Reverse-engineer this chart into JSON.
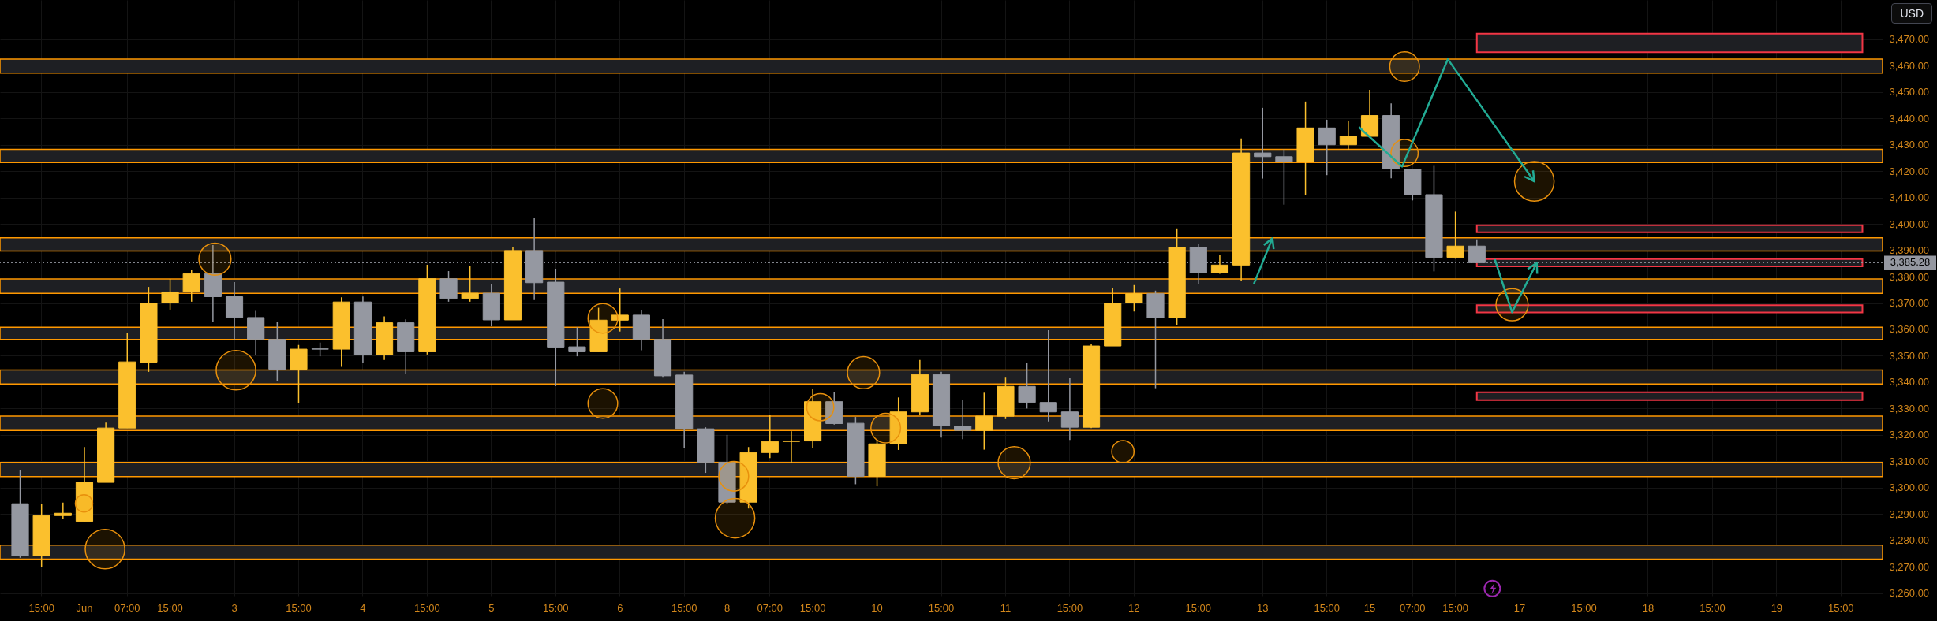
{
  "chart_data": {
    "type": "candlestick",
    "categories": [
      null,
      "15:00",
      null,
      "Jun",
      null,
      "07:00",
      null,
      "15:00",
      null,
      null,
      "3",
      null,
      null,
      "15:00",
      null,
      null,
      "4",
      null,
      null,
      "15:00",
      null,
      null,
      "5",
      null,
      null,
      "15:00",
      null,
      null,
      "6",
      null,
      null,
      "15:00",
      null,
      "8",
      null,
      "07:00",
      null,
      "15:00",
      null,
      null,
      "10",
      null,
      null,
      "15:00",
      null,
      null,
      "11",
      null,
      null,
      "15:00",
      null,
      null,
      "12",
      null,
      null,
      "15:00",
      null,
      null,
      "13",
      null,
      null,
      "15:00",
      null,
      "15",
      null,
      "07:00",
      null,
      "15:00",
      null,
      null,
      "17",
      null,
      null,
      "15:00",
      null,
      null,
      "18",
      null,
      null,
      "15:00",
      null,
      null,
      "19",
      null,
      null,
      "15:00",
      null
    ],
    "ohlc": [
      [
        3293.9,
        3306.8,
        3273.4,
        3274.2
      ],
      [
        3274.2,
        3293.9,
        3269.8,
        3289.4
      ],
      [
        3289.4,
        3294.3,
        3288.1,
        3290.3
      ],
      [
        3287.2,
        3315.4,
        3287.2,
        3302.0
      ],
      [
        3302.0,
        3324.7,
        3302.0,
        3322.6
      ],
      [
        3322.6,
        3358.6,
        3322.6,
        3347.7
      ],
      [
        3347.6,
        3376.1,
        3343.9,
        3370.0
      ],
      [
        3370.0,
        3379.1,
        3367.5,
        3374.2
      ],
      [
        3374.2,
        3382.7,
        3370.5,
        3381.1
      ],
      [
        3381.1,
        3392.0,
        3363.0,
        3372.4
      ],
      [
        3372.4,
        3377.9,
        3356.2,
        3364.5
      ],
      [
        3364.5,
        3367.0,
        3350.2,
        3356.2
      ],
      [
        3356.2,
        3362.9,
        3340.3,
        3344.9
      ],
      [
        3344.9,
        3354.1,
        3332.1,
        3352.5
      ],
      [
        3352.6,
        3355.0,
        3349.8,
        3352.5
      ],
      [
        3352.5,
        3372.2,
        3345.8,
        3370.4
      ],
      [
        3370.4,
        3372.5,
        3347.2,
        3350.3
      ],
      [
        3350.3,
        3364.9,
        3348.4,
        3362.5
      ],
      [
        3362.5,
        3363.8,
        3343.0,
        3351.5
      ],
      [
        3351.5,
        3384.5,
        3350.5,
        3379.2
      ],
      [
        3379.2,
        3382.1,
        3370.5,
        3371.7
      ],
      [
        3371.7,
        3384.1,
        3370.5,
        3373.7
      ],
      [
        3373.7,
        3377.3,
        3361.2,
        3363.6
      ],
      [
        3363.6,
        3391.4,
        3363.6,
        3389.9
      ],
      [
        3389.9,
        3402.2,
        3371.1,
        3377.7
      ],
      [
        3377.9,
        3383.0,
        3338.5,
        3353.3
      ],
      [
        3353.4,
        3360.8,
        3349.8,
        3351.5
      ],
      [
        3351.5,
        3368.2,
        3351.5,
        3363.5
      ],
      [
        3363.5,
        3375.5,
        3359.2,
        3365.4
      ],
      [
        3365.4,
        3367.3,
        3352.1,
        3356.2
      ],
      [
        3356.2,
        3363.9,
        3341.7,
        3342.4
      ],
      [
        3342.7,
        3343.9,
        3315.2,
        3322.2
      ],
      [
        3322.3,
        3322.9,
        3305.6,
        3309.6
      ],
      [
        3309.6,
        3320.0,
        3293.7,
        3294.5
      ],
      [
        3294.5,
        3315.4,
        3292.1,
        3313.3
      ],
      [
        3313.3,
        3327.5,
        3311.2,
        3317.5
      ],
      [
        3317.5,
        3321.4,
        3309.4,
        3317.7
      ],
      [
        3317.7,
        3337.3,
        3314.9,
        3332.6
      ],
      [
        3332.6,
        3336.3,
        3323.9,
        3324.3
      ],
      [
        3324.4,
        3326.8,
        3301.3,
        3304.3
      ],
      [
        3304.3,
        3318.2,
        3300.5,
        3316.6
      ],
      [
        3316.6,
        3334.2,
        3314.3,
        3328.7
      ],
      [
        3328.7,
        3348.4,
        3327.4,
        3342.9
      ],
      [
        3342.9,
        3343.9,
        3319.0,
        3323.4
      ],
      [
        3323.3,
        3333.3,
        3318.4,
        3321.7
      ],
      [
        3321.7,
        3336.0,
        3314.4,
        3327.1
      ],
      [
        3327.1,
        3341.7,
        3326.0,
        3338.4
      ],
      [
        3338.4,
        3347.3,
        3330.0,
        3332.3
      ],
      [
        3332.3,
        3359.7,
        3325.1,
        3328.7
      ],
      [
        3328.7,
        3341.5,
        3318.1,
        3322.9
      ],
      [
        3322.9,
        3354.4,
        3322.6,
        3353.7
      ],
      [
        3353.7,
        3375.7,
        3353.7,
        3370.0
      ],
      [
        3370.0,
        3376.8,
        3366.8,
        3373.5
      ],
      [
        3373.5,
        3374.7,
        3337.7,
        3364.4
      ],
      [
        3364.4,
        3398.3,
        3361.7,
        3391.1
      ],
      [
        3391.1,
        3392.4,
        3377.1,
        3381.5
      ],
      [
        3381.5,
        3388.4,
        3381.1,
        3384.4
      ],
      [
        3384.4,
        3432.4,
        3378.4,
        3426.9
      ],
      [
        3426.9,
        3444.0,
        3417.2,
        3425.5
      ],
      [
        3425.5,
        3428.4,
        3407.3,
        3423.6
      ],
      [
        3423.6,
        3446.4,
        3411.1,
        3436.4
      ],
      [
        3436.4,
        3439.5,
        3418.5,
        3430.0
      ],
      [
        3430.0,
        3438.9,
        3428.1,
        3433.2
      ],
      [
        3433.2,
        3450.8,
        3432.8,
        3441.1
      ],
      [
        3441.1,
        3445.7,
        3417.3,
        3420.8
      ],
      [
        3420.8,
        3420.8,
        3408.9,
        3411.1
      ],
      [
        3411.1,
        3422.0,
        3382.0,
        3387.3
      ],
      [
        3387.3,
        3404.7,
        3386.8,
        3391.6
      ],
      [
        3391.6,
        3394.1,
        3385.28,
        3385.28
      ],
      null,
      null,
      null,
      null,
      null,
      null,
      null,
      null,
      null,
      null,
      null,
      null,
      null,
      null,
      null,
      null,
      null,
      null
    ],
    "colors": [
      "#9598a1",
      "#fbc02d",
      "#fbc02d",
      "#fbc02d",
      "#fbc02d",
      "#fbc02d",
      "#fbc02d",
      "#fbc02d",
      "#fbc02d",
      "#9598a1",
      "#9598a1",
      "#9598a1",
      "#9598a1",
      "#fbc02d",
      "#9598a1",
      "#fbc02d",
      "#9598a1",
      "#fbc02d",
      "#9598a1",
      "#fbc02d",
      "#9598a1",
      "#fbc02d",
      "#9598a1",
      "#fbc02d",
      "#9598a1",
      "#9598a1",
      "#9598a1",
      "#fbc02d",
      "#fbc02d",
      "#9598a1",
      "#9598a1",
      "#9598a1",
      "#9598a1",
      "#9598a1",
      "#fbc02d",
      "#fbc02d",
      "#fbc02d",
      "#fbc02d",
      "#9598a1",
      "#9598a1",
      "#fbc02d",
      "#fbc02d",
      "#fbc02d",
      "#9598a1",
      "#9598a1",
      "#fbc02d",
      "#fbc02d",
      "#9598a1",
      "#9598a1",
      "#9598a1",
      "#fbc02d",
      "#fbc02d",
      "#fbc02d",
      "#9598a1",
      "#fbc02d",
      "#9598a1",
      "#fbc02d",
      "#fbc02d",
      "#9598a1",
      "#9598a1",
      "#fbc02d",
      "#9598a1",
      "#fbc02d",
      "#fbc02d",
      "#9598a1",
      "#9598a1",
      "#9598a1",
      "#fbc02d",
      "#9598a1",
      null,
      null,
      null,
      null,
      null,
      null,
      null,
      null,
      null,
      null,
      null,
      null,
      null,
      null,
      null,
      null,
      null,
      null
    ],
    "ylim": [
      3259,
      3484.9
    ],
    "yticks": [
      {
        "value": 3260,
        "label": "3,260.00"
      },
      {
        "value": 3270,
        "label": "3,270.00"
      },
      {
        "value": 3280,
        "label": "3,280.00"
      },
      {
        "value": 3290,
        "label": "3,290.00"
      },
      {
        "value": 3300,
        "label": "3,300.00"
      },
      {
        "value": 3310,
        "label": "3,310.00"
      },
      {
        "value": 3320,
        "label": "3,320.00"
      },
      {
        "value": 3330,
        "label": "3,330.00"
      },
      {
        "value": 3340,
        "label": "3,340.00"
      },
      {
        "value": 3350,
        "label": "3,350.00"
      },
      {
        "value": 3360,
        "label": "3,360.00"
      },
      {
        "value": 3370,
        "label": "3,370.00"
      },
      {
        "value": 3380,
        "label": "3,380.00"
      },
      {
        "value": 3390,
        "label": "3,390.00"
      },
      {
        "value": 3400,
        "label": "3,400.00"
      },
      {
        "value": 3410,
        "label": "3,410.00"
      },
      {
        "value": 3420,
        "label": "3,420.00"
      },
      {
        "value": 3430,
        "label": "3,430.00"
      },
      {
        "value": 3440,
        "label": "3,440.00"
      },
      {
        "value": 3450,
        "label": "3,450.00"
      },
      {
        "value": 3460,
        "label": "3,460.00"
      },
      {
        "value": 3470,
        "label": "3,470.00"
      }
    ],
    "grid": true,
    "bands": [
      {
        "axis": "y",
        "from": 3457.2,
        "to": 3462.5,
        "color": "#ff9800"
      },
      {
        "axis": "y",
        "from": 3423.3,
        "to": 3428.3,
        "color": "#ff9800"
      },
      {
        "axis": "y",
        "from": 3389.7,
        "to": 3394.7,
        "color": "#ff9800"
      },
      {
        "axis": "y",
        "from": 3373.7,
        "to": 3379.1,
        "color": "#ff9800"
      },
      {
        "axis": "y",
        "from": 3356.2,
        "to": 3360.8,
        "color": "#ff9800"
      },
      {
        "axis": "y",
        "from": 3339.3,
        "to": 3344.6,
        "color": "#ff9800"
      },
      {
        "axis": "y",
        "from": 3321.7,
        "to": 3327.1,
        "color": "#ff9800"
      },
      {
        "axis": "y",
        "from": 3304.2,
        "to": 3309.6,
        "color": "#ff9800"
      },
      {
        "axis": "y",
        "from": 3272.9,
        "to": 3278.2,
        "color": "#ff9800"
      },
      {
        "axis": "y",
        "from": 3465.1,
        "to": 3472.1,
        "color": "#f23645"
      },
      {
        "axis": "y",
        "from": 3396.8,
        "to": 3399.5,
        "color": "#f23645"
      },
      {
        "axis": "y",
        "from": 3383.9,
        "to": 3386.7,
        "color": "#f23645"
      },
      {
        "axis": "y",
        "from": 3366.4,
        "to": 3369.2,
        "color": "#f23645"
      },
      {
        "axis": "y",
        "from": 3333.2,
        "to": 3336.2,
        "color": "#f23645"
      }
    ],
    "ref_lines": [
      {
        "axis": "y",
        "value": 3385.28,
        "label": "3,385.28",
        "color": "#9598a1",
        "line_style": "dotted"
      }
    ],
    "annotations": [
      "USD"
    ]
  }
}
